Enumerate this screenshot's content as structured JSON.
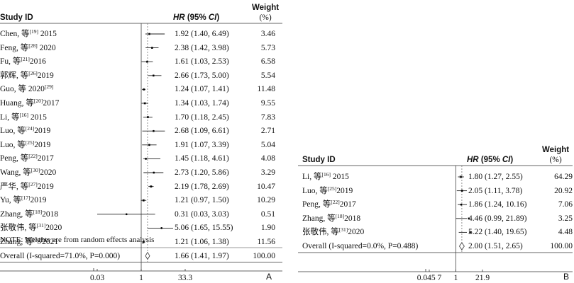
{
  "chart_data": [
    {
      "type": "forest",
      "panel": "A",
      "headers": {
        "study": "Study ID",
        "hr_prefix": "HR",
        "hr_open": " (95% ",
        "hr_ci": "CI",
        "hr_close": ")",
        "weight": "Weight",
        "weight_unit": "(%)"
      },
      "studies": [
        {
          "author": "Chen, 等",
          "ref": "[19]",
          "year": " 2015",
          "hr": 1.92,
          "lo": 1.4,
          "hi": 6.49,
          "text": "1.92 (1.40, 6.49)",
          "weight": "3.46"
        },
        {
          "author": "Feng, 等",
          "ref": "[28]",
          "year": " 2020",
          "hr": 2.38,
          "lo": 1.42,
          "hi": 3.98,
          "text": "2.38 (1.42, 3.98)",
          "weight": "5.73"
        },
        {
          "author": "Fu, 等",
          "ref": "[21]",
          "year": "2016",
          "hr": 1.61,
          "lo": 1.03,
          "hi": 2.53,
          "text": "1.61 (1.03, 2.53)",
          "weight": "6.58"
        },
        {
          "author": "郭辉, 等",
          "ref": "[26]",
          "year": "2019",
          "hr": 2.66,
          "lo": 1.73,
          "hi": 5.0,
          "text": "2.66 (1.73, 5.00)",
          "weight": "5.54"
        },
        {
          "author": "Guo, 等 2020",
          "ref": "[29]",
          "year": "",
          "hr": 1.24,
          "lo": 1.07,
          "hi": 1.41,
          "text": "1.24 (1.07, 1.41)",
          "weight": "11.48"
        },
        {
          "author": "Huang, 等",
          "ref": "[20]",
          "year": "2017",
          "hr": 1.34,
          "lo": 1.03,
          "hi": 1.74,
          "text": "1.34 (1.03, 1.74)",
          "weight": "9.55"
        },
        {
          "author": "Li, 等",
          "ref": "[16]",
          "year": " 2015",
          "hr": 1.7,
          "lo": 1.18,
          "hi": 2.45,
          "text": "1.70 (1.18, 2.45)",
          "weight": "7.83"
        },
        {
          "author": "Luo, 等",
          "ref": "[24]",
          "year": "2019",
          "hr": 2.68,
          "lo": 1.09,
          "hi": 6.61,
          "text": "2.68 (1.09, 6.61)",
          "weight": "2.71"
        },
        {
          "author": "Luo, 等",
          "ref": "[25]",
          "year": "2019",
          "hr": 1.91,
          "lo": 1.07,
          "hi": 3.39,
          "text": "1.91 (1.07, 3.39)",
          "weight": "5.04"
        },
        {
          "author": "Peng, 等",
          "ref": "[22]",
          "year": "2017",
          "hr": 1.45,
          "lo": 1.18,
          "hi": 4.61,
          "text": "1.45 (1.18, 4.61)",
          "weight": "4.08"
        },
        {
          "author": "Wang, 等",
          "ref": "[30]",
          "year": "2020",
          "hr": 2.73,
          "lo": 1.2,
          "hi": 5.86,
          "text": "2.73 (1.20, 5.86)",
          "weight": "3.29"
        },
        {
          "author": "严华, 等",
          "ref": "[27]",
          "year": "2019",
          "hr": 2.19,
          "lo": 1.78,
          "hi": 2.69,
          "text": "2.19 (1.78, 2.69)",
          "weight": "10.47"
        },
        {
          "author": "Yu, 等",
          "ref": "[17]",
          "year": "2019",
          "hr": 1.21,
          "lo": 0.97,
          "hi": 1.5,
          "text": "1.21 (0.97, 1.50)",
          "weight": "10.29"
        },
        {
          "author": "Zhang, 等",
          "ref": "[18]",
          "year": "2018",
          "hr": 0.31,
          "lo": 0.03,
          "hi": 3.03,
          "text": "0.31 (0.03, 3.03)",
          "weight": "0.51"
        },
        {
          "author": "张敬伟, 等",
          "ref": "[31]",
          "year": "2020",
          "hr": 5.06,
          "lo": 1.65,
          "hi": 15.55,
          "text": "5.06 (1.65, 15.55)",
          "weight": "1.90"
        },
        {
          "author": "Zhang, 等",
          "ref": "[34]",
          "year": "2021",
          "hr": 1.21,
          "lo": 1.06,
          "hi": 1.38,
          "text": "1.21 (1.06, 1.38)",
          "weight": "11.56"
        }
      ],
      "overall": {
        "label": "Overall (I-squared=71.0%, P=0.000)",
        "hr": 1.66,
        "lo": 1.41,
        "hi": 1.97,
        "text": "1.66 (1.41, 1.97)",
        "weight": "100.00"
      },
      "note": "NOTE: Weights are from random effects analysis",
      "axis": {
        "scale": "log",
        "ticks": [
          0.03,
          1,
          33.3
        ],
        "tick_labels": [
          "0.03",
          "1",
          "33.3"
        ]
      },
      "panel_label": "A"
    },
    {
      "type": "forest",
      "panel": "B",
      "headers": {
        "study": "Study ID",
        "hr_prefix": "HR",
        "hr_open": " (95% ",
        "hr_ci": "CI",
        "hr_close": ")",
        "weight": "Weight",
        "weight_unit": "(%)"
      },
      "studies": [
        {
          "author": "Li, 等",
          "ref": "[16]",
          "year": " 2015",
          "hr": 1.8,
          "lo": 1.27,
          "hi": 2.55,
          "text": "1.80 (1.27, 2.55)",
          "weight": "64.29"
        },
        {
          "author": "Luo, 等",
          "ref": "[25]",
          "year": "2019",
          "hr": 2.05,
          "lo": 1.11,
          "hi": 3.78,
          "text": "2.05 (1.11, 3.78)",
          "weight": "20.92"
        },
        {
          "author": "Peng, 等",
          "ref": "[22]",
          "year": "2017",
          "hr": 1.86,
          "lo": 1.24,
          "hi": 10.16,
          "text": "1.86 (1.24, 10.16)",
          "weight": "7.06"
        },
        {
          "author": "Zhang, 等",
          "ref": "[18]",
          "year": "2018",
          "hr": 4.46,
          "lo": 0.99,
          "hi": 21.89,
          "text": "4.46 (0.99, 21.89)",
          "weight": "3.25"
        },
        {
          "author": "张敬伟, 等",
          "ref": "[31]",
          "year": "2020",
          "hr": 5.22,
          "lo": 1.4,
          "hi": 19.65,
          "text": "5.22 (1.40, 19.65)",
          "weight": "4.48"
        }
      ],
      "overall": {
        "label": "Overall (I-squared=0.0%, P=0.488)",
        "hr": 2.0,
        "lo": 1.51,
        "hi": 2.65,
        "text": "2.00 (1.51, 2.65)",
        "weight": "100.00"
      },
      "note": "",
      "axis": {
        "scale": "log",
        "ticks": [
          0.0457,
          1,
          21.9
        ],
        "tick_labels": [
          "0.045 7",
          "1",
          "21.9"
        ]
      },
      "panel_label": "B"
    }
  ]
}
